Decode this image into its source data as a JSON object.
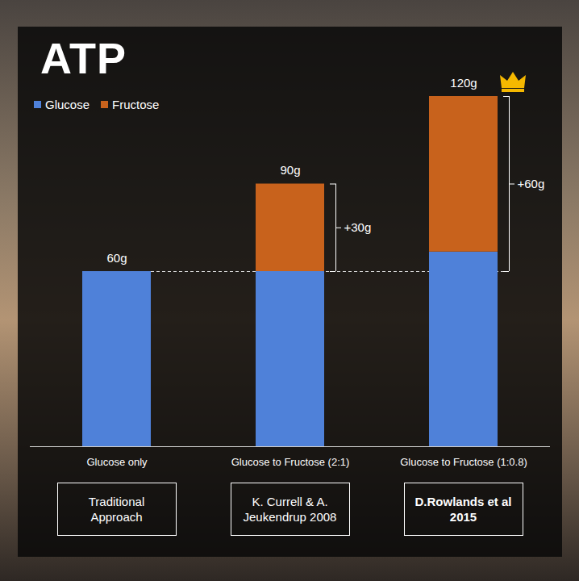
{
  "chart_data": {
    "type": "bar",
    "logo": "ATP",
    "categories": [
      "Glucose only",
      "Glucose to Fructose (2:1)",
      "Glucose to Fructose (1:0.8)"
    ],
    "series": [
      {
        "name": "Glucose",
        "color": "#4f81d9",
        "values": [
          60,
          60,
          66.7
        ]
      },
      {
        "name": "Fructose",
        "color": "#c8621c",
        "values": [
          null,
          30,
          53.3
        ]
      }
    ],
    "stacked": true,
    "total_labels": [
      "60g",
      "90g",
      "120g"
    ],
    "reference_line": 60,
    "increments": [
      {
        "category": "Glucose to Fructose (2:1)",
        "from": 60,
        "to": 90,
        "label": "+30g"
      },
      {
        "category": "Glucose to Fructose (1:0.8)",
        "from": 60,
        "to": 120,
        "label": "+60g"
      }
    ],
    "sources": [
      "Traditional Approach",
      "K. Currell & A. Jeukendrup 2008",
      "D.Rowlands et al 2015"
    ],
    "ylim": [
      0,
      120
    ],
    "yticks": [],
    "tick_labels": "x",
    "grid": false,
    "legend": "top-left"
  }
}
